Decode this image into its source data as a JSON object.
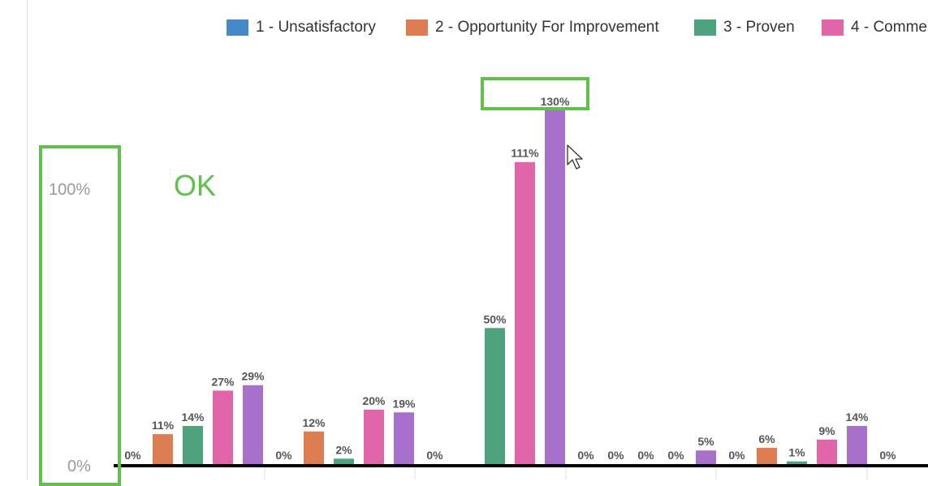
{
  "chart_data": {
    "type": "bar",
    "legend": [
      {
        "label": "1 - Unsatisfactory",
        "color": "#4589c7"
      },
      {
        "label": "2 - Opportunity For Improvement",
        "color": "#dc7e52"
      },
      {
        "label": "3 - Proven",
        "color": "#4fa27e"
      },
      {
        "label": "4 - Comme",
        "color": "#e166a9"
      }
    ],
    "legend_placement": "top",
    "y_ticks": [
      "100%",
      "0%"
    ],
    "ylim": [
      0,
      130
    ],
    "series": [
      {
        "color": "#4589c7",
        "values": [
          0,
          0,
          0,
          0,
          0,
          0
        ]
      },
      {
        "color": "#dc7e52",
        "values": [
          11,
          12,
          null,
          0,
          6,
          null
        ]
      },
      {
        "color": "#4fa27e",
        "values": [
          14,
          2,
          50,
          0,
          1,
          null
        ]
      },
      {
        "color": "#e166a9",
        "values": [
          27,
          20,
          111,
          0,
          9,
          null
        ]
      },
      {
        "color": "#a670cb",
        "values": [
          29,
          19,
          130,
          5,
          14,
          null
        ]
      }
    ],
    "data_labels": [
      [
        "0%",
        "11%",
        "14%",
        "27%",
        "29%"
      ],
      [
        "0%",
        "12%",
        "2%",
        "20%",
        "19%"
      ],
      [
        "0%",
        "",
        "50%",
        "111%",
        "130%"
      ],
      [
        "0%",
        "0%",
        "0%",
        "0%",
        "5%"
      ],
      [
        "0%",
        "6%",
        "1%",
        "9%",
        "14%"
      ],
      [
        "0%",
        "",
        "",
        "",
        ""
      ]
    ],
    "grid": false
  },
  "annotation": {
    "ok_label": "OK",
    "color": "#5fc04a"
  }
}
